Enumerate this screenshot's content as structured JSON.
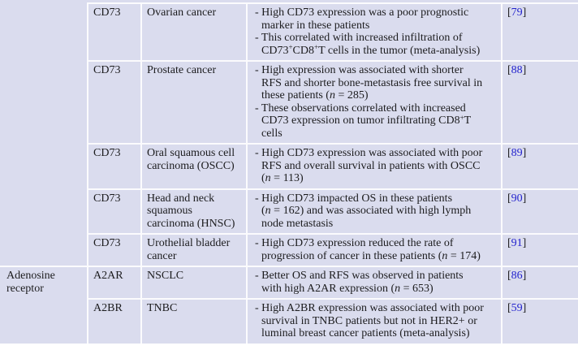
{
  "table": {
    "style": {
      "cell_bg": "#dadcee",
      "border": "#fbfbfd",
      "text": "#1c1c1e",
      "ref_blue": "#2323cd",
      "page_bg": "#ffffff"
    },
    "labels": {
      "ref_open": "[",
      "ref_close": "]"
    },
    "sections": [
      {
        "category": "",
        "rows": [
          {
            "marker": "CD73",
            "cancer": "Ovarian cancer",
            "findings": [
              "- High CD73 expression was a poor prognostic\nmarker in these patients",
              "- This correlated with increased infiltration of\nCD73^+^CD8^+^T cells in the tumor (meta-analysis)"
            ],
            "ref": "79"
          },
          {
            "marker": "CD73",
            "cancer": "Prostate cancer",
            "findings": [
              "- High expression was associated with shorter\nRFS and shorter bone-metastasis free survival in\nthese patients (*n* = 285)",
              "- These observations correlated with increased\nCD73 expression on tumor infiltrating CD8^+^T\ncells"
            ],
            "ref": "88"
          },
          {
            "marker": "CD73",
            "cancer": "Oral squamous cell\ncarcinoma (OSCC)",
            "findings": [
              "- High CD73 expression was associated with poor\nRFS and overall survival in patients with OSCC\n(*n* = 113)"
            ],
            "ref": "89"
          },
          {
            "marker": "CD73",
            "cancer": "Head and neck\nsquamous\ncarcinoma (HNSC)",
            "findings": [
              "- High CD73 impacted OS in these patients\n(*n* = 162) and was associated with high lymph\nnode metastasis"
            ],
            "ref": "90"
          },
          {
            "marker": "CD73",
            "cancer": "Urothelial bladder\ncancer",
            "findings": [
              "- High CD73 expression reduced the rate of\nprogression of cancer in these patients (*n* = 174)"
            ],
            "ref": "91"
          }
        ]
      },
      {
        "category": "Adenosine\nreceptor",
        "rows": [
          {
            "marker": "A2AR",
            "cancer": "NSCLC",
            "findings": [
              "- Better OS and RFS was observed in patients\nwith high A2AR expression (*n* = 653)"
            ],
            "ref": "86"
          },
          {
            "marker": "A2BR",
            "cancer": "TNBC",
            "findings": [
              "- High A2BR expression was associated with poor\nsurvival in TNBC patients but not in HER2+ or\nluminal breast cancer patients (meta-analysis)"
            ],
            "ref": "59"
          }
        ]
      }
    ]
  }
}
